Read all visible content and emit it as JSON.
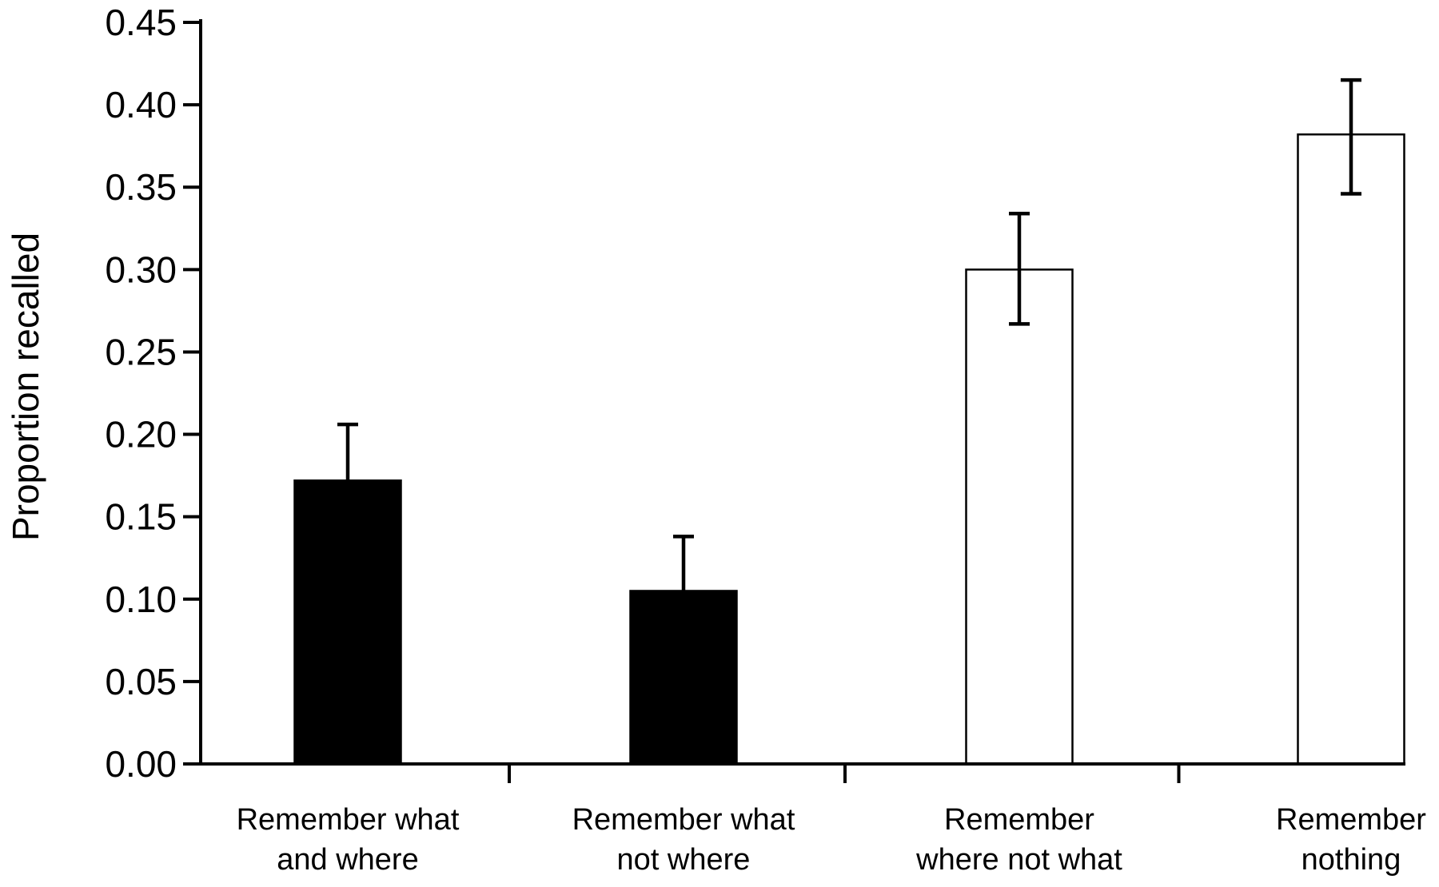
{
  "chart_data": {
    "type": "bar",
    "title": "",
    "xlabel": "",
    "ylabel": "Proportion recalled",
    "ylim": [
      0,
      0.45
    ],
    "yticks": [
      "0.00",
      "0.05",
      "0.10",
      "0.15",
      "0.20",
      "0.25",
      "0.30",
      "0.35",
      "0.40",
      "0.45"
    ],
    "grid": false,
    "legend": "none",
    "categories": [
      [
        "Remember what",
        "and where"
      ],
      [
        "Remember what",
        "not where"
      ],
      [
        "Remember",
        "where not what"
      ],
      [
        "Remember",
        "nothing"
      ]
    ],
    "values": [
      0.172,
      0.105,
      0.3,
      0.382
    ],
    "error_upper": [
      0.206,
      0.138,
      0.334,
      0.415
    ],
    "error_lower": [
      null,
      null,
      0.267,
      0.346
    ],
    "fills": [
      "#000000",
      "#000000",
      "#ffffff",
      "#ffffff"
    ]
  }
}
